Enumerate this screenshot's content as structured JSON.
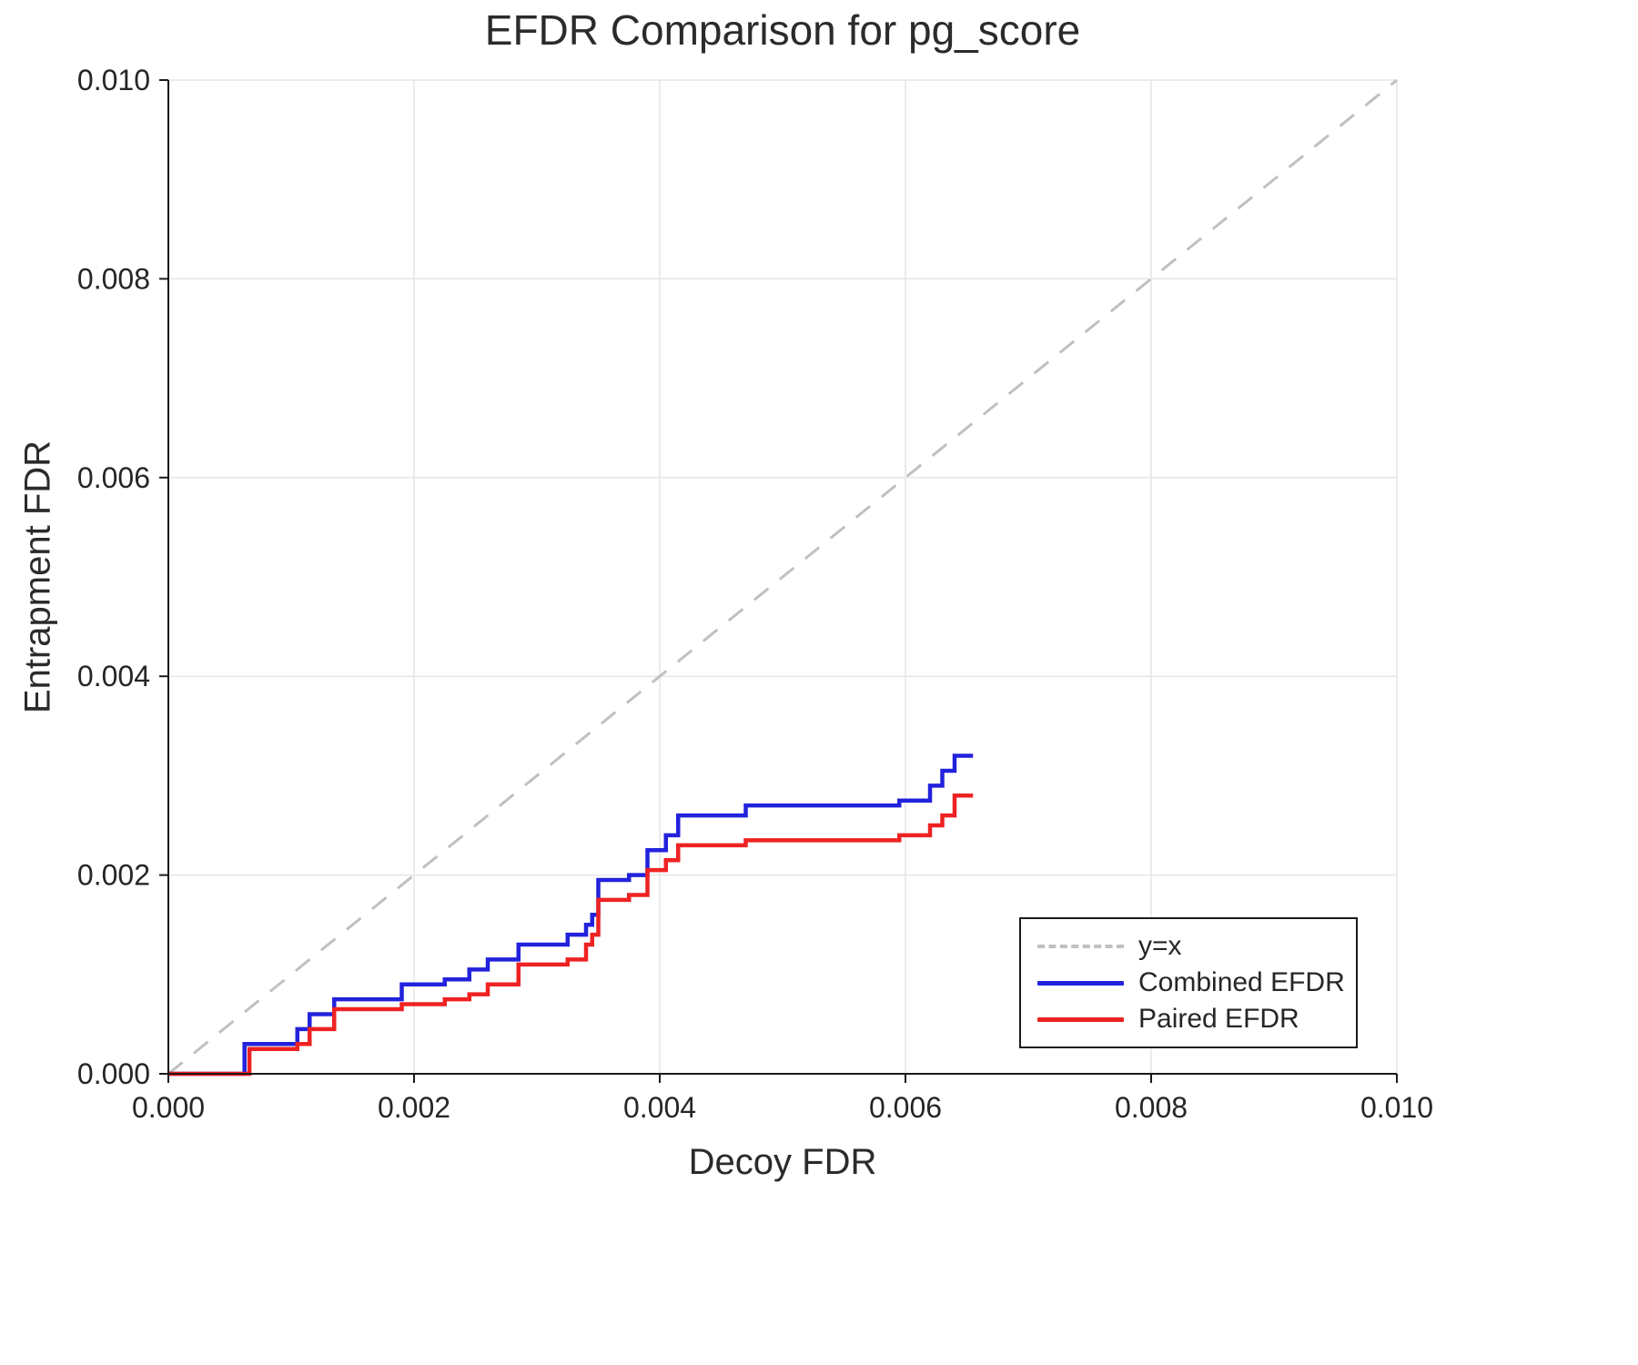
{
  "chart_data": {
    "type": "line",
    "title": "EFDR Comparison for pg_score",
    "xlabel": "Decoy FDR",
    "ylabel": "Entrapment FDR",
    "xlim": [
      0.0,
      0.01
    ],
    "ylim": [
      0.0,
      0.01
    ],
    "grid": true,
    "legend_position": "bottom-right",
    "x_tick_values": [
      0.0,
      0.002,
      0.004,
      0.006,
      0.008,
      0.01
    ],
    "x_tick_labels": [
      "0.000",
      "0.002",
      "0.004",
      "0.006",
      "0.008",
      "0.010"
    ],
    "y_tick_values": [
      0.0,
      0.002,
      0.004,
      0.006,
      0.008,
      0.01
    ],
    "y_tick_labels": [
      "0.000",
      "0.002",
      "0.004",
      "0.006",
      "0.008",
      "0.010"
    ],
    "reference_line": {
      "name": "y=x",
      "style": "dashed",
      "color": "#c0c0c0",
      "from": [
        0.0,
        0.0
      ],
      "to": [
        0.01,
        0.01
      ]
    },
    "series": [
      {
        "name": "Combined EFDR",
        "color": "#2222dd",
        "step": "post",
        "points": [
          [
            0.0,
            0.0
          ],
          [
            0.00062,
            0.0003
          ],
          [
            0.00105,
            0.00045
          ],
          [
            0.00115,
            0.0006
          ],
          [
            0.00135,
            0.00075
          ],
          [
            0.0019,
            0.0009
          ],
          [
            0.00225,
            0.00095
          ],
          [
            0.00245,
            0.00105
          ],
          [
            0.0026,
            0.00115
          ],
          [
            0.00285,
            0.0013
          ],
          [
            0.00325,
            0.0014
          ],
          [
            0.0034,
            0.0015
          ],
          [
            0.00345,
            0.0016
          ],
          [
            0.0035,
            0.00195
          ],
          [
            0.00375,
            0.002
          ],
          [
            0.0039,
            0.00225
          ],
          [
            0.00405,
            0.0024
          ],
          [
            0.00415,
            0.0026
          ],
          [
            0.0047,
            0.0027
          ],
          [
            0.00595,
            0.00275
          ],
          [
            0.0062,
            0.0029
          ],
          [
            0.0063,
            0.00305
          ],
          [
            0.0064,
            0.0032
          ],
          [
            0.00655,
            0.0032
          ]
        ]
      },
      {
        "name": "Paired EFDR",
        "color": "#ee2222",
        "step": "post",
        "points": [
          [
            0.0,
            0.0
          ],
          [
            0.00066,
            0.00025
          ],
          [
            0.00105,
            0.0003
          ],
          [
            0.00115,
            0.00045
          ],
          [
            0.00135,
            0.00065
          ],
          [
            0.0019,
            0.0007
          ],
          [
            0.00225,
            0.00075
          ],
          [
            0.00245,
            0.0008
          ],
          [
            0.0026,
            0.0009
          ],
          [
            0.00285,
            0.0011
          ],
          [
            0.00325,
            0.00115
          ],
          [
            0.0034,
            0.0013
          ],
          [
            0.00345,
            0.0014
          ],
          [
            0.0035,
            0.00175
          ],
          [
            0.00375,
            0.0018
          ],
          [
            0.0039,
            0.00205
          ],
          [
            0.00405,
            0.00215
          ],
          [
            0.00415,
            0.0023
          ],
          [
            0.0047,
            0.00235
          ],
          [
            0.00595,
            0.0024
          ],
          [
            0.0062,
            0.0025
          ],
          [
            0.0063,
            0.0026
          ],
          [
            0.0064,
            0.0028
          ],
          [
            0.00655,
            0.0028
          ]
        ]
      }
    ],
    "style": {
      "grid_color": "#e6e6e6",
      "axis_color": "#1a1a1a",
      "tick_text_color": "#262626",
      "background": "#ffffff"
    }
  }
}
